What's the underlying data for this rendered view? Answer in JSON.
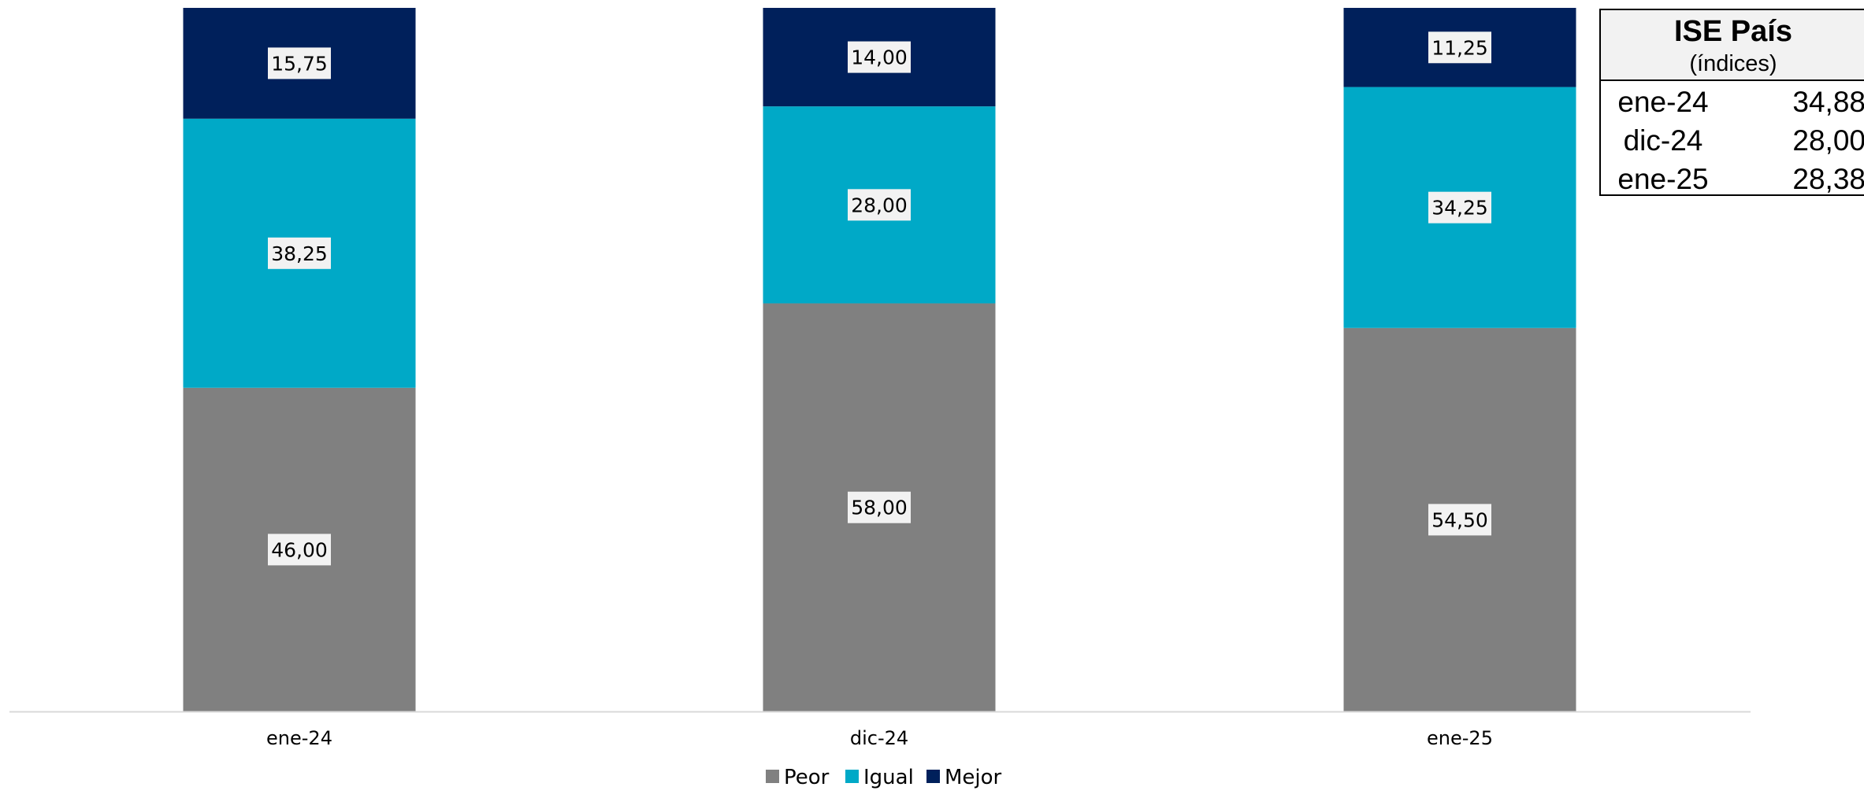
{
  "chart_data": {
    "type": "bar",
    "stacked": true,
    "categories": [
      "ene-24",
      "dic-24",
      "ene-25"
    ],
    "series": [
      {
        "name": "Peor",
        "color": "#808080",
        "values": [
          46.0,
          58.0,
          54.5
        ],
        "labels": [
          "46,00",
          "58,00",
          "54,50"
        ]
      },
      {
        "name": "Igual",
        "color": "#00a9c7",
        "values": [
          38.25,
          28.0,
          34.25
        ],
        "labels": [
          "38,25",
          "28,00",
          "34,25"
        ]
      },
      {
        "name": "Mejor",
        "color": "#00205b",
        "values": [
          15.75,
          14.0,
          11.25
        ],
        "labels": [
          "15,75",
          "14,00",
          "11,25"
        ]
      }
    ],
    "ylim": [
      0,
      100
    ],
    "grid": false,
    "legend_position": "bottom"
  },
  "ise_table": {
    "title": "ISE País",
    "subtitle": "(índices)",
    "rows": [
      {
        "period": "ene-24",
        "value": "34,88"
      },
      {
        "period": "dic-24",
        "value": "28,00"
      },
      {
        "period": "ene-25",
        "value": "28,38"
      }
    ]
  }
}
